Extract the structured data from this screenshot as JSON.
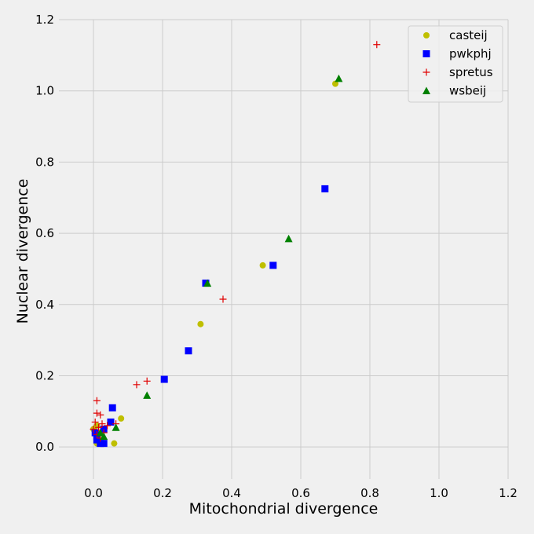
{
  "chart_data": {
    "type": "scatter",
    "title": "",
    "xlabel": "Mitochondrial divergence",
    "ylabel": "Nuclear divergence",
    "xlim": [
      -0.1,
      1.2
    ],
    "ylim": [
      -0.09,
      1.2
    ],
    "xticks": [
      "0.0",
      "0.2",
      "0.4",
      "0.6",
      "0.8",
      "1.0",
      "1.2"
    ],
    "yticks": [
      "0.0",
      "0.2",
      "0.4",
      "0.6",
      "0.8",
      "1.0",
      "1.2"
    ],
    "grid": true,
    "legend": "top-right",
    "series": [
      {
        "name": "casteij",
        "marker": "circle",
        "color": "#bfbf00",
        "points": [
          [
            0.7,
            1.02
          ],
          [
            0.49,
            0.51
          ],
          [
            0.31,
            0.345
          ],
          [
            0.08,
            0.08
          ],
          [
            0.06,
            0.01
          ],
          [
            0.01,
            0.06
          ],
          [
            0.02,
            0.04
          ],
          [
            0.03,
            0.05
          ],
          [
            0.01,
            0.01
          ],
          [
            0.0,
            0.05
          ]
        ]
      },
      {
        "name": "pwkphj",
        "marker": "square",
        "color": "#0000ff",
        "points": [
          [
            0.67,
            0.725
          ],
          [
            0.52,
            0.51
          ],
          [
            0.325,
            0.46
          ],
          [
            0.275,
            0.27
          ],
          [
            0.205,
            0.19
          ],
          [
            0.055,
            0.11
          ],
          [
            0.05,
            0.07
          ],
          [
            0.03,
            0.05
          ],
          [
            0.02,
            0.01
          ],
          [
            0.03,
            0.01
          ],
          [
            0.01,
            0.03
          ],
          [
            0.005,
            0.04
          ],
          [
            0.01,
            0.02
          ]
        ]
      },
      {
        "name": "spretus",
        "marker": "plus",
        "color": "#e00000",
        "points": [
          [
            0.82,
            1.13
          ],
          [
            0.375,
            0.415
          ],
          [
            0.155,
            0.185
          ],
          [
            0.125,
            0.175
          ],
          [
            0.01,
            0.13
          ],
          [
            0.01,
            0.095
          ],
          [
            0.02,
            0.09
          ],
          [
            0.005,
            0.07
          ],
          [
            0.025,
            0.065
          ],
          [
            0.04,
            0.06
          ],
          [
            0.065,
            0.065
          ],
          [
            0.015,
            0.055
          ],
          [
            0.03,
            0.04
          ],
          [
            0.01,
            0.035
          ],
          [
            0.02,
            0.025
          ],
          [
            0.0,
            0.05
          ]
        ]
      },
      {
        "name": "wsbeij",
        "marker": "triangle",
        "color": "#008000",
        "points": [
          [
            0.71,
            1.035
          ],
          [
            0.565,
            0.585
          ],
          [
            0.33,
            0.46
          ],
          [
            0.155,
            0.145
          ],
          [
            0.065,
            0.055
          ],
          [
            0.03,
            0.03
          ],
          [
            0.02,
            0.04
          ]
        ]
      }
    ]
  }
}
